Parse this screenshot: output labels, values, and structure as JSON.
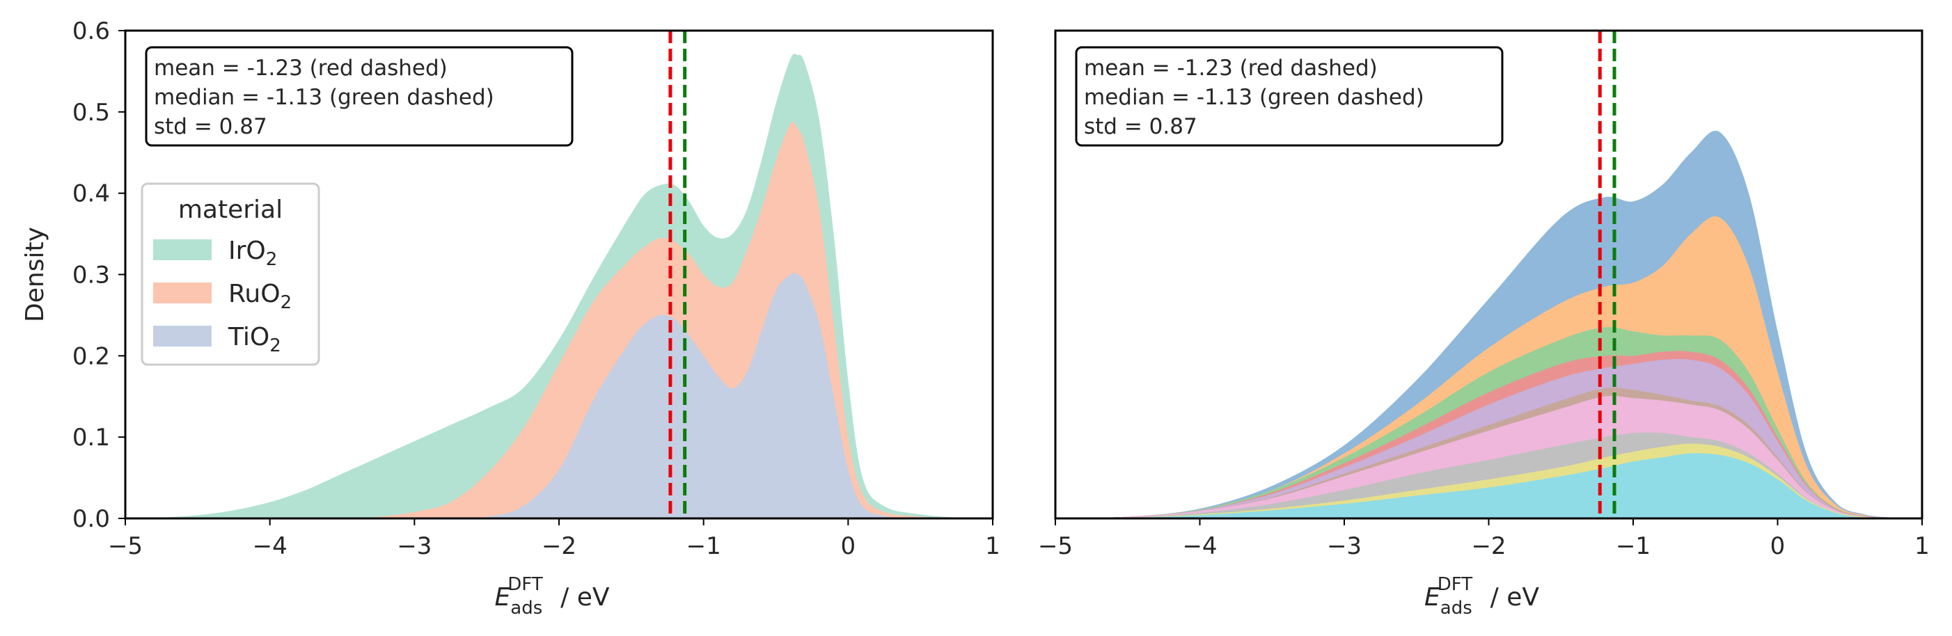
{
  "chart_data": [
    {
      "type": "area",
      "stacked": true,
      "xlabel": {
        "main": "E",
        "sub": "ads",
        "sup": "DFT",
        "unit": "/ eV"
      },
      "ylabel": "Density",
      "xlim": [
        -5,
        1
      ],
      "ylim": [
        0,
        0.6
      ],
      "xticks": [
        -5,
        -4,
        -3,
        -2,
        -1,
        0,
        1
      ],
      "xtick_labels": [
        "−5",
        "−4",
        "−3",
        "−2",
        "−1",
        "0",
        "1"
      ],
      "yticks": [
        0.0,
        0.1,
        0.2,
        0.3,
        0.4,
        0.5,
        0.6
      ],
      "ytick_labels": [
        "0.0",
        "0.1",
        "0.2",
        "0.3",
        "0.4",
        "0.5",
        "0.6"
      ],
      "annotation": [
        "mean = -1.23 (red dashed)",
        "median = -1.13 (green dashed)",
        "std = 0.87"
      ],
      "vlines": [
        {
          "x": -1.23,
          "color": "#e8000b",
          "style": "dashed"
        },
        {
          "x": -1.13,
          "color": "#0a7d0a",
          "style": "dashed"
        }
      ],
      "legend": {
        "title": "material",
        "position": "center-left",
        "entries": [
          {
            "base": "IrO",
            "sub": "2",
            "color": "#b3e2d3"
          },
          {
            "base": "RuO",
            "sub": "2",
            "color": "#fcc5af"
          },
          {
            "base": "TiO",
            "sub": "2",
            "color": "#c4cfe4"
          }
        ]
      },
      "x": [
        -5,
        -4.75,
        -4.5,
        -4.25,
        -4,
        -3.75,
        -3.5,
        -3.25,
        -3,
        -2.75,
        -2.5,
        -2.25,
        -2,
        -1.75,
        -1.5,
        -1.4,
        -1.3,
        -1.2,
        -1.1,
        -1,
        -0.9,
        -0.8,
        -0.7,
        -0.6,
        -0.5,
        -0.4,
        -0.35,
        -0.3,
        -0.2,
        -0.1,
        0,
        0.1,
        0.25,
        0.5,
        0.75,
        1
      ],
      "series_cumulative": [
        {
          "name": "IrO2",
          "color": "#b3e2d3",
          "values": [
            0,
            0.001,
            0.004,
            0.01,
            0.02,
            0.035,
            0.055,
            0.075,
            0.095,
            0.115,
            0.135,
            0.16,
            0.22,
            0.3,
            0.375,
            0.4,
            0.41,
            0.41,
            0.39,
            0.36,
            0.345,
            0.35,
            0.38,
            0.44,
            0.51,
            0.565,
            0.57,
            0.56,
            0.49,
            0.35,
            0.17,
            0.05,
            0.015,
            0.005,
            0.001,
            0
          ]
        },
        {
          "name": "RuO2",
          "color": "#fcc5af",
          "values": [
            0,
            0,
            0,
            0,
            0,
            0,
            0,
            0.002,
            0.008,
            0.02,
            0.055,
            0.11,
            0.19,
            0.27,
            0.32,
            0.335,
            0.345,
            0.34,
            0.325,
            0.3,
            0.285,
            0.29,
            0.33,
            0.38,
            0.44,
            0.485,
            0.48,
            0.46,
            0.38,
            0.24,
            0.1,
            0.03,
            0.008,
            0.002,
            0,
            0
          ]
        },
        {
          "name": "TiO2",
          "color": "#c4cfe4",
          "values": [
            0,
            0,
            0,
            0,
            0,
            0,
            0,
            0,
            0,
            0,
            0.002,
            0.015,
            0.06,
            0.15,
            0.22,
            0.24,
            0.25,
            0.245,
            0.225,
            0.2,
            0.175,
            0.16,
            0.18,
            0.23,
            0.28,
            0.3,
            0.3,
            0.29,
            0.24,
            0.15,
            0.06,
            0.015,
            0.003,
            0,
            0,
            0
          ]
        }
      ]
    },
    {
      "type": "area",
      "stacked": true,
      "xlabel": {
        "main": "E",
        "sub": "ads",
        "sup": "DFT",
        "unit": "/ eV"
      },
      "xlim": [
        -5,
        1
      ],
      "ylim": [
        0,
        0.6
      ],
      "xticks": [
        -5,
        -4,
        -3,
        -2,
        -1,
        0,
        1
      ],
      "xtick_labels": [
        "−5",
        "−4",
        "−3",
        "−2",
        "−1",
        "0",
        "1"
      ],
      "annotation": [
        "mean = -1.23 (red dashed)",
        "median = -1.13 (green dashed)",
        "std = 0.87"
      ],
      "vlines": [
        {
          "x": -1.23,
          "color": "#e8000b",
          "style": "dashed"
        },
        {
          "x": -1.13,
          "color": "#0a7d0a",
          "style": "dashed"
        }
      ],
      "x": [
        -5,
        -4.5,
        -4,
        -3.5,
        -3,
        -2.5,
        -2,
        -1.5,
        -1.2,
        -1,
        -0.8,
        -0.6,
        -0.4,
        -0.2,
        0,
        0.2,
        0.4,
        0.6,
        0.8,
        1
      ],
      "series_cumulative": [
        {
          "color": "#8fb8da",
          "values": [
            0,
            0.002,
            0.012,
            0.04,
            0.09,
            0.17,
            0.27,
            0.37,
            0.395,
            0.39,
            0.41,
            0.45,
            0.475,
            0.4,
            0.23,
            0.08,
            0.02,
            0.005,
            0.001,
            0
          ]
        },
        {
          "color": "#fdbf86",
          "values": [
            0,
            0.002,
            0.011,
            0.035,
            0.08,
            0.14,
            0.21,
            0.265,
            0.285,
            0.29,
            0.31,
            0.35,
            0.37,
            0.31,
            0.18,
            0.065,
            0.017,
            0.004,
            0.001,
            0
          ]
        },
        {
          "color": "#97cf97",
          "values": [
            0,
            0.002,
            0.011,
            0.035,
            0.075,
            0.125,
            0.18,
            0.22,
            0.235,
            0.23,
            0.225,
            0.225,
            0.22,
            0.18,
            0.11,
            0.045,
            0.013,
            0.003,
            0.001,
            0
          ]
        },
        {
          "color": "#ea9292",
          "values": [
            0,
            0.002,
            0.01,
            0.032,
            0.068,
            0.11,
            0.155,
            0.19,
            0.2,
            0.2,
            0.205,
            0.205,
            0.195,
            0.16,
            0.1,
            0.042,
            0.012,
            0.003,
            0.001,
            0
          ]
        },
        {
          "color": "#c8b0d8",
          "values": [
            0,
            0.002,
            0.01,
            0.03,
            0.063,
            0.1,
            0.14,
            0.173,
            0.185,
            0.19,
            0.195,
            0.195,
            0.185,
            0.152,
            0.095,
            0.04,
            0.011,
            0.003,
            0.001,
            0
          ]
        },
        {
          "color": "#c7a79b",
          "values": [
            0,
            0.002,
            0.009,
            0.026,
            0.055,
            0.085,
            0.115,
            0.145,
            0.16,
            0.158,
            0.152,
            0.145,
            0.138,
            0.115,
            0.075,
            0.033,
            0.01,
            0.002,
            0,
            0
          ]
        },
        {
          "color": "#efb7dc",
          "values": [
            0,
            0.002,
            0.009,
            0.025,
            0.052,
            0.08,
            0.108,
            0.135,
            0.15,
            0.148,
            0.145,
            0.14,
            0.133,
            0.11,
            0.072,
            0.032,
            0.01,
            0.002,
            0,
            0
          ]
        },
        {
          "color": "#c0c0c0",
          "values": [
            0,
            0.001,
            0.007,
            0.018,
            0.035,
            0.055,
            0.072,
            0.09,
            0.1,
            0.105,
            0.105,
            0.1,
            0.095,
            0.08,
            0.055,
            0.025,
            0.008,
            0.002,
            0,
            0
          ]
        },
        {
          "color": "#e6e08a",
          "values": [
            0,
            0.001,
            0.005,
            0.012,
            0.022,
            0.035,
            0.048,
            0.063,
            0.075,
            0.082,
            0.088,
            0.092,
            0.088,
            0.075,
            0.052,
            0.024,
            0.008,
            0.002,
            0,
            0
          ]
        },
        {
          "color": "#8fdce6",
          "values": [
            0,
            0.001,
            0.004,
            0.01,
            0.018,
            0.028,
            0.038,
            0.052,
            0.062,
            0.07,
            0.075,
            0.08,
            0.078,
            0.068,
            0.048,
            0.022,
            0.007,
            0.001,
            0,
            0
          ]
        }
      ]
    }
  ]
}
